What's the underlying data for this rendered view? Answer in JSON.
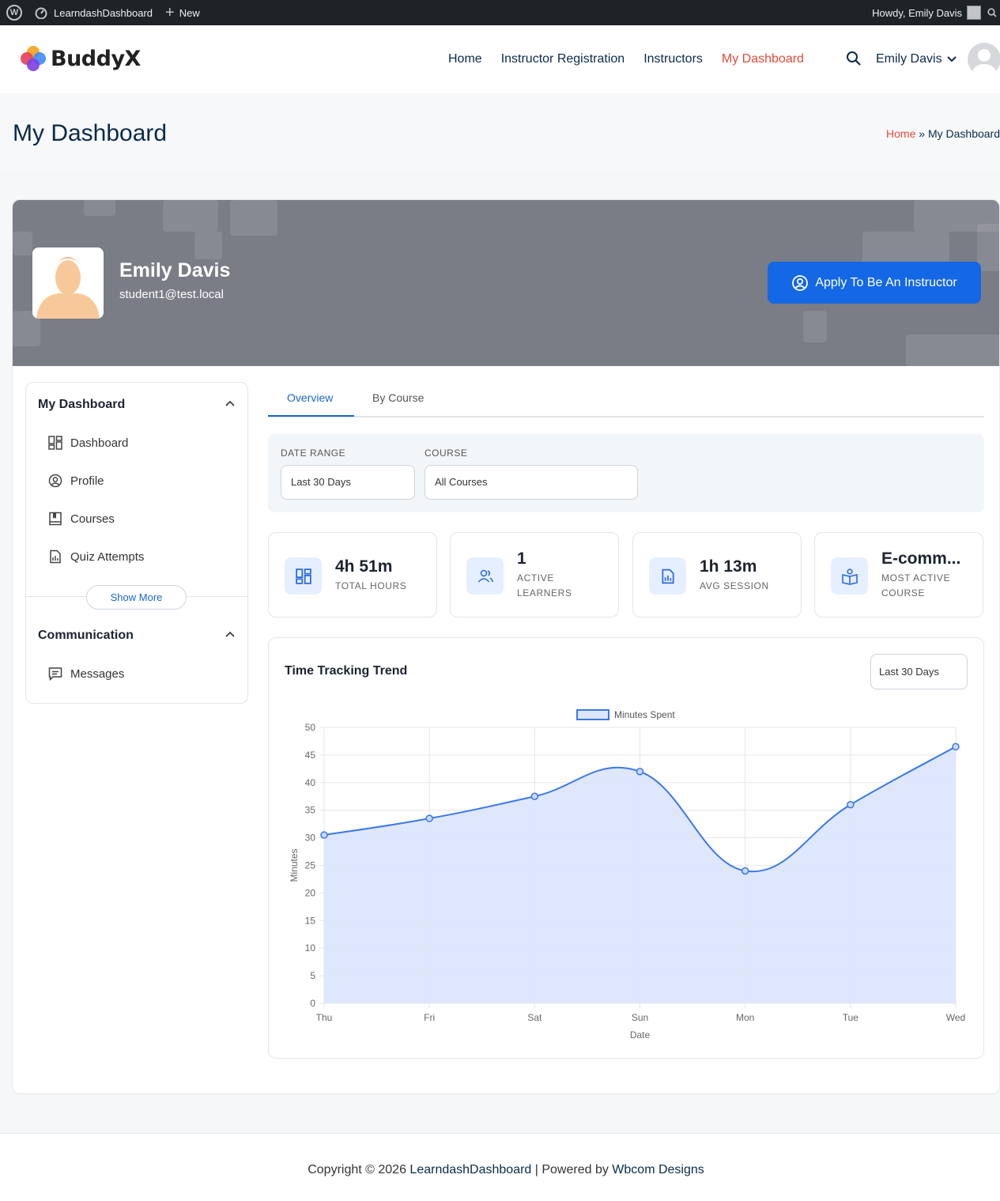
{
  "admin_bar": {
    "site_name": "LearndashDashboard",
    "new_label": "New",
    "howdy": "Howdy, Emily Davis"
  },
  "header": {
    "logo_text": "BuddyX",
    "nav": [
      "Home",
      "Instructor Registration",
      "Instructors",
      "My Dashboard"
    ],
    "active_nav": "My Dashboard",
    "user_name": "Emily Davis"
  },
  "title_bar": {
    "title": "My Dashboard",
    "crumb_home": "Home",
    "crumb_sep": "»",
    "crumb_current": "My Dashboard"
  },
  "profile": {
    "name": "Emily Davis",
    "email": "student1@test.local",
    "apply_label": "Apply To Be An Instructor"
  },
  "sidebar": {
    "section1": "My Dashboard",
    "items": [
      "Dashboard",
      "Profile",
      "Courses",
      "Quiz Attempts"
    ],
    "show_more": "Show More",
    "section2": "Communication",
    "comm_items": [
      "Messages"
    ]
  },
  "tabs": [
    "Overview",
    "By Course"
  ],
  "filters": {
    "date_range_label": "DATE RANGE",
    "date_range_value": "Last 30 Days",
    "course_label": "COURSE",
    "course_value": "All Courses"
  },
  "stats": [
    {
      "value": "4h 51m",
      "label": "TOTAL HOURS",
      "icon": "grid-icon"
    },
    {
      "value": "1",
      "label": "ACTIVE LEARNERS",
      "icon": "users-icon"
    },
    {
      "value": "1h 13m",
      "label": "AVG SESSION",
      "icon": "report-icon"
    },
    {
      "value": "E-comm...",
      "label": "MOST ACTIVE COURSE",
      "icon": "course-icon"
    }
  ],
  "chart_card": {
    "title": "Time Tracking Trend",
    "range": "Last 30 Days"
  },
  "chart_data": {
    "type": "line",
    "categories": [
      "Thu",
      "Fri",
      "Sat",
      "Sun",
      "Mon",
      "Tue",
      "Wed"
    ],
    "series": [
      {
        "name": "Minutes Spent",
        "values": [
          30.5,
          33.5,
          37.5,
          42,
          24,
          36,
          46.5
        ]
      }
    ],
    "xlabel": "Date",
    "ylabel": "Minutes",
    "ylim": [
      0,
      50
    ],
    "yticks": [
      0,
      5,
      10,
      15,
      20,
      25,
      30,
      35,
      40,
      45,
      50
    ],
    "fill": true,
    "grid": true,
    "legend": "top-center",
    "colors": {
      "line": "#3b78e7",
      "fill": "#dce6fb"
    }
  },
  "footer": {
    "prefix": "Copyright © 2026 ",
    "site": "LearndashDashboard",
    "middle": " | Powered by ",
    "company": "Wbcom Designs"
  },
  "colors": {
    "accent": "#1467e5",
    "nav_active": "#e14b3b",
    "admin_bar": "#1d2327",
    "banner": "#7a7d86"
  }
}
